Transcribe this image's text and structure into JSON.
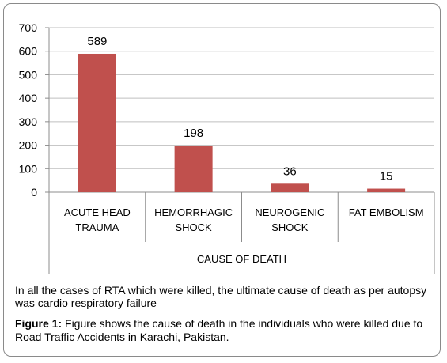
{
  "chart_data": {
    "type": "bar",
    "categories": [
      [
        "ACUTE HEAD",
        "TRAUMA"
      ],
      [
        "HEMORRHAGIC",
        "SHOCK"
      ],
      [
        "NEUROGENIC",
        "SHOCK"
      ],
      [
        "FAT EMBOLISM"
      ]
    ],
    "values": [
      589,
      198,
      36,
      15
    ],
    "data_labels": [
      "589",
      "198",
      "36",
      "15"
    ],
    "y_ticks": [
      "0",
      "100",
      "200",
      "300",
      "400",
      "500",
      "600",
      "700"
    ],
    "ylim": [
      0,
      700
    ],
    "xlabel": "CAUSE OF DEATH",
    "ylabel": "",
    "grid": true,
    "bar_color": "#c0504d"
  },
  "caption": {
    "note": "In all the cases of RTA which were killed, the ultimate cause of death as per autopsy was cardio respiratory failure",
    "figure_label": "Figure 1:",
    "figure_text": " Figure shows the cause of death in the individuals who were killed due to Road Traffic Accidents in Karachi, Pakistan."
  },
  "colors": {
    "bar": "#c0504d",
    "grid": "#bfbfbf",
    "axis": "#8c8c8c",
    "frame": "#8a8a8a"
  }
}
